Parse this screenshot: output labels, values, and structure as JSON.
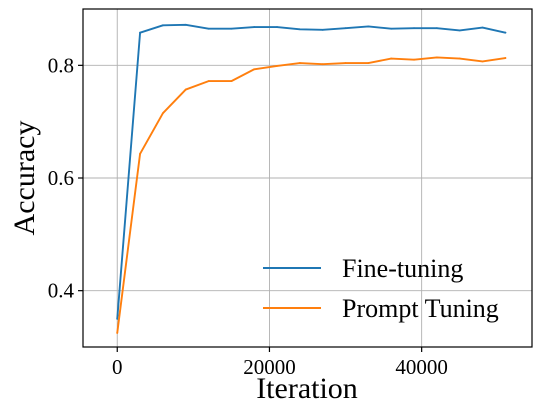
{
  "chart_data": {
    "type": "line",
    "xlabel": "Iteration",
    "ylabel": "Accuracy",
    "xlim": [
      -4500,
      54500
    ],
    "ylim": [
      0.3,
      0.9
    ],
    "xticks": [
      0,
      20000,
      40000
    ],
    "yticks": [
      0.4,
      0.6,
      0.8
    ],
    "grid": true,
    "legend_position": "lower-right",
    "x": [
      0,
      3000,
      6000,
      9000,
      12000,
      15000,
      18000,
      21000,
      24000,
      27000,
      30000,
      33000,
      36000,
      39000,
      42000,
      45000,
      48000,
      51000
    ],
    "series": [
      {
        "name": "Fine-tuning",
        "color": "#1f77b4",
        "values": [
          0.35,
          0.858,
          0.871,
          0.872,
          0.865,
          0.865,
          0.868,
          0.868,
          0.864,
          0.863,
          0.866,
          0.869,
          0.865,
          0.866,
          0.866,
          0.862,
          0.867,
          0.858
        ]
      },
      {
        "name": "Prompt Tuning",
        "color": "#ff7f0e",
        "values": [
          0.325,
          0.643,
          0.715,
          0.757,
          0.772,
          0.772,
          0.793,
          0.799,
          0.804,
          0.802,
          0.804,
          0.804,
          0.812,
          0.81,
          0.814,
          0.812,
          0.807,
          0.813
        ]
      }
    ]
  }
}
